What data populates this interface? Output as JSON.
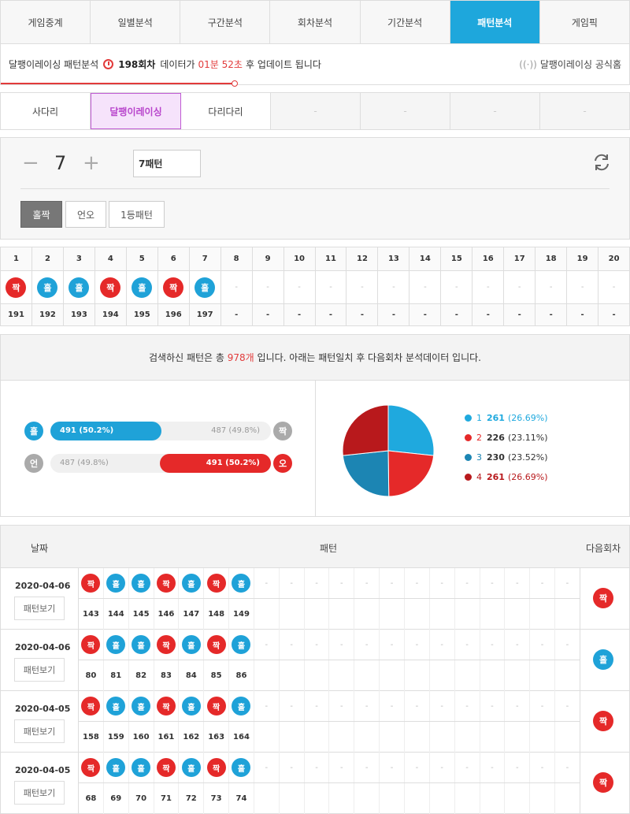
{
  "nav": {
    "tabs": [
      "게임중계",
      "일별분석",
      "구간분석",
      "회차분석",
      "기간분석",
      "패턴분석",
      "게임픽"
    ],
    "active": 5
  },
  "info": {
    "title": "달팽이레이싱 패턴분석",
    "round": "198회차",
    "text1": "데이터가",
    "time": "01분 52초",
    "text2": "후 업데이트 됩니다",
    "official": "달팽이레이싱 공식홈"
  },
  "subtabs": {
    "items": [
      "사다리",
      "달팽이레이싱",
      "다리다리",
      "-",
      "-",
      "-",
      "-"
    ],
    "active": 1
  },
  "control": {
    "minus": "−",
    "count": "7",
    "plus": "+",
    "pattern_input": "7패턴",
    "buttons": [
      "홀짝",
      "언오",
      "1등패턴"
    ],
    "selected": 0
  },
  "pattern_table": {
    "headers": [
      "1",
      "2",
      "3",
      "4",
      "5",
      "6",
      "7",
      "8",
      "9",
      "10",
      "11",
      "12",
      "13",
      "14",
      "15",
      "16",
      "17",
      "18",
      "19",
      "20"
    ],
    "balls": [
      "짝",
      "홀",
      "홀",
      "짝",
      "홀",
      "짝",
      "홀",
      "-",
      "-",
      "-",
      "-",
      "-",
      "-",
      "-",
      "-",
      "-",
      "-",
      "-",
      "-",
      "-"
    ],
    "rounds": [
      "191",
      "192",
      "193",
      "194",
      "195",
      "196",
      "197",
      "-",
      "-",
      "-",
      "-",
      "-",
      "-",
      "-",
      "-",
      "-",
      "-",
      "-",
      "-",
      "-"
    ]
  },
  "result": {
    "head_pre": "검색하신 패턴은 총",
    "count": "978개",
    "head_post": "입니다. 아래는 패턴일치 후 다음회차 분석데이터 입니다.",
    "bars": [
      {
        "left": "홀",
        "right": "짝",
        "left_val": "491 (50.2%)",
        "right_val": "487 (49.8%)",
        "left_fraction": 0.502
      },
      {
        "left": "언",
        "right": "오",
        "left_val": "487 (49.8%)",
        "right_val": "491 (50.2%)",
        "left_fraction": 0.498
      }
    ],
    "legend": [
      {
        "label": "1",
        "value": "261",
        "pct": "(26.69%)",
        "color": "#1fa9de"
      },
      {
        "label": "2",
        "value": "226",
        "pct": "(23.11%)",
        "color": "#e52929"
      },
      {
        "label": "3",
        "value": "230",
        "pct": "(23.52%)",
        "color": "#1c85b3"
      },
      {
        "label": "4",
        "value": "261",
        "pct": "(26.69%)",
        "color": "#b8191c"
      }
    ]
  },
  "history": {
    "headers": {
      "date": "날짜",
      "pattern": "패턴",
      "next": "다음회차"
    },
    "view_label": "패턴보기",
    "rows": [
      {
        "date": "2020-04-06",
        "balls": [
          "짝",
          "홀",
          "홀",
          "짝",
          "홀",
          "짝",
          "홀"
        ],
        "rounds": [
          "143",
          "144",
          "145",
          "146",
          "147",
          "148",
          "149"
        ],
        "next": "짝"
      },
      {
        "date": "2020-04-06",
        "balls": [
          "짝",
          "홀",
          "홀",
          "짝",
          "홀",
          "짝",
          "홀"
        ],
        "rounds": [
          "80",
          "81",
          "82",
          "83",
          "84",
          "85",
          "86"
        ],
        "next": "홀"
      },
      {
        "date": "2020-04-05",
        "balls": [
          "짝",
          "홀",
          "홀",
          "짝",
          "홀",
          "짝",
          "홀"
        ],
        "rounds": [
          "158",
          "159",
          "160",
          "161",
          "162",
          "163",
          "164"
        ],
        "next": "짝"
      },
      {
        "date": "2020-04-05",
        "balls": [
          "짝",
          "홀",
          "홀",
          "짝",
          "홀",
          "짝",
          "홀"
        ],
        "rounds": [
          "68",
          "69",
          "70",
          "71",
          "72",
          "73",
          "74"
        ],
        "next": "짝"
      }
    ]
  }
}
